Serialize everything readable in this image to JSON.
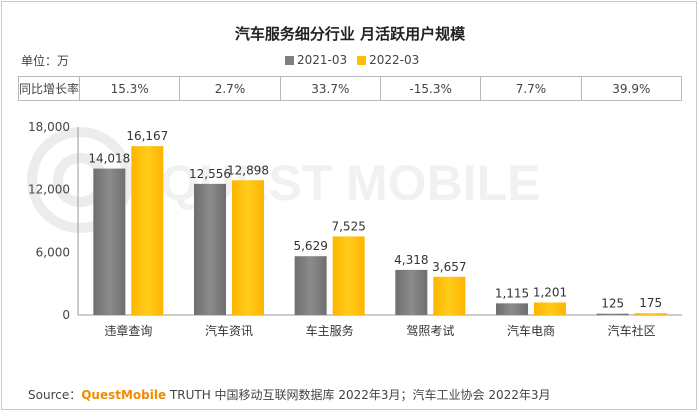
{
  "title": "汽车服务细分行业 月活跃用户规模",
  "unit_label": "单位：万",
  "legend": [
    {
      "label": "2021-03",
      "color": "#7f7f7f"
    },
    {
      "label": "2022-03",
      "color": "#ffc000"
    }
  ],
  "growth_row": {
    "header": "同比增长率",
    "values": [
      "15.3%",
      "2.7%",
      "33.7%",
      "-15.3%",
      "7.7%",
      "39.9%"
    ]
  },
  "watermark": "QUEST MOBILE",
  "source": {
    "prefix": "Source：",
    "brand": "QuestMobile",
    "text": " TRUTH 中国移动互联网数据库 2022年3月；汽车工业协会 2022年3月"
  },
  "colors": {
    "bar_2021": "#7f7f7f",
    "bar_2022": "#ffc000",
    "axis": "#999999"
  },
  "chart_data": {
    "type": "bar",
    "categories": [
      "违章查询",
      "汽车资讯",
      "车主服务",
      "驾照考试",
      "汽车电商",
      "汽车社区"
    ],
    "series": [
      {
        "name": "2021-03",
        "values": [
          14018,
          12556,
          5629,
          4318,
          1115,
          125
        ]
      },
      {
        "name": "2022-03",
        "values": [
          16167,
          12898,
          7525,
          3657,
          1201,
          175
        ]
      }
    ],
    "data_labels": [
      [
        "14,018",
        "12,556",
        "5,629",
        "4,318",
        "1,115",
        "125"
      ],
      [
        "16,167",
        "12,898",
        "7,525",
        "3,657",
        "1,201",
        "175"
      ]
    ],
    "yticks": [
      "0",
      "6,000",
      "12,000",
      "18,000"
    ],
    "ytick_values": [
      0,
      6000,
      12000,
      18000
    ],
    "ylim": [
      0,
      18000
    ],
    "grid": false,
    "legend_position": "top-center"
  }
}
